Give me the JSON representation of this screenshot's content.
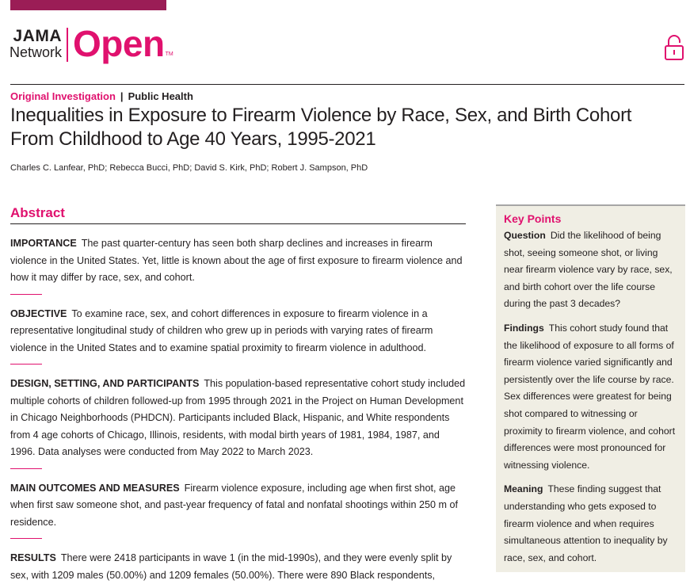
{
  "header": {
    "brand_jama": "JAMA",
    "brand_network": "Network",
    "brand_open": "Open",
    "brand_tm": "TM",
    "accent_color": "#e0116e",
    "topbar_color": "#9b1d56",
    "lock_icon": "open-access-lock-icon"
  },
  "article": {
    "category": "Original Investigation",
    "separator": "|",
    "subject": "Public Health",
    "title": "Inequalities in Exposure to Firearm Violence by Race, Sex, and Birth Cohort From Childhood to Age 40 Years, 1995-2021",
    "authors": "Charles C. Lanfear, PhD; Rebecca Bucci, PhD; David S. Kirk, PhD; Robert J. Sampson, PhD"
  },
  "abstract": {
    "heading": "Abstract",
    "sections": [
      {
        "label": "IMPORTANCE",
        "text": "The past quarter-century has seen both sharp declines and increases in firearm violence in the United States. Yet, little is known about the age of first exposure to firearm violence and how it may differ by race, sex, and cohort."
      },
      {
        "label": "OBJECTIVE",
        "text": "To examine race, sex, and cohort differences in exposure to firearm violence in a representative longitudinal study of children who grew up in periods with varying rates of firearm violence in the United States and to examine spatial proximity to firearm violence in adulthood."
      },
      {
        "label": "DESIGN, SETTING, AND PARTICIPANTS",
        "text": "This population-based representative cohort study included multiple cohorts of children followed-up from 1995 through 2021 in the Project on Human Development in Chicago Neighborhoods (PHDCN). Participants included Black, Hispanic, and White respondents from 4 age cohorts of Chicago, Illinois, residents, with modal birth years of 1981, 1984, 1987, and 1996. Data analyses were conducted from May 2022 to March 2023."
      },
      {
        "label": "MAIN OUTCOMES AND MEASURES",
        "text": "Firearm violence exposure, including age when first shot, age when first saw someone shot, and past-year frequency of fatal and nonfatal shootings within 250 m of residence."
      },
      {
        "label": "RESULTS",
        "text": "There were 2418 participants in wave 1 (in the mid-1990s), and they were evenly split by sex, with 1209 males (50.00%) and 1209 females (50.00%). There were 890 Black respondents,"
      }
    ]
  },
  "key_points": {
    "heading": "Key Points",
    "sections": [
      {
        "label": "Question",
        "text": "Did the likelihood of being shot, seeing someone shot, or living near firearm violence vary by race, sex, and birth cohort over the life course during the past 3 decades?"
      },
      {
        "label": "Findings",
        "text": "This cohort study found that the likelihood of exposure to all forms of firearm violence varied significantly and persistently over the life course by race. Sex differences were greatest for being shot compared to witnessing or proximity to firearm violence, and cohort differences were most pronounced for witnessing violence."
      },
      {
        "label": "Meaning",
        "text": "These finding suggest that understanding who gets exposed to firearm violence and when requires simultaneous attention to inequality by race, sex, and cohort."
      }
    ]
  }
}
